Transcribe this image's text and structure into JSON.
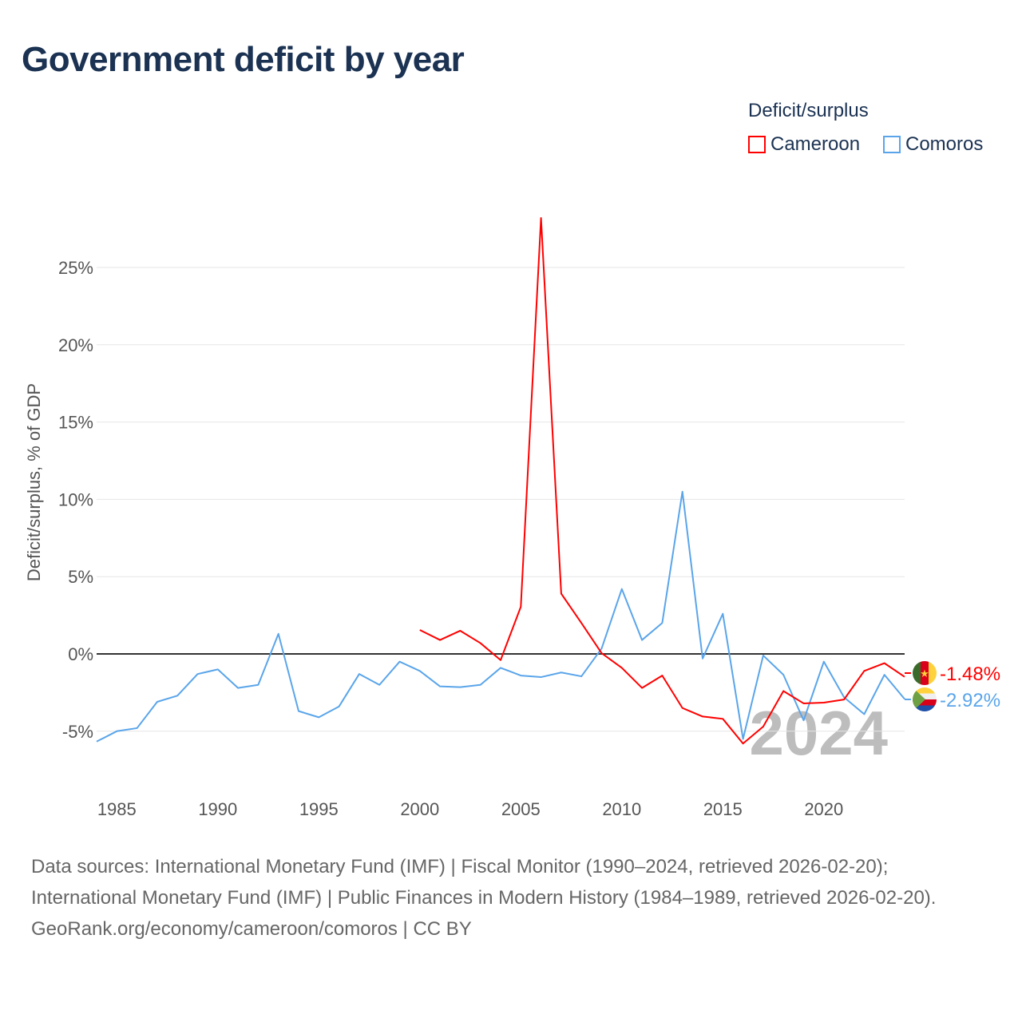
{
  "title": "Government deficit by year",
  "legend": {
    "title": "Deficit/surplus",
    "items": [
      {
        "name": "Cameroon",
        "color": "#ff0000"
      },
      {
        "name": "Comoros",
        "color": "#5aa5ea"
      }
    ]
  },
  "watermark_year": "2024",
  "end_labels": {
    "cameroon": "-1.48%",
    "comoros": "-2.92%"
  },
  "source": {
    "line1": "Data sources: International Monetary Fund (IMF) | Fiscal Monitor (1990–2024, retrieved 2026-02-20); International Monetary Fund (IMF) | Public Finances in Modern History (1984–1989, retrieved 2026-02-20).",
    "line2": "GeoRank.org/economy/cameroon/comoros | CC BY"
  },
  "chart_data": {
    "type": "line",
    "title": "Government deficit by year",
    "xlabel": "",
    "ylabel": "Deficit/surplus, % of GDP",
    "xlim": [
      1984,
      2024
    ],
    "ylim": [
      -7.5,
      29
    ],
    "xticks": [
      1985,
      1990,
      1995,
      2000,
      2005,
      2010,
      2015,
      2020
    ],
    "yticks": [
      -5,
      0,
      5,
      10,
      15,
      20,
      25
    ],
    "ytick_labels": [
      "-5%",
      "0%",
      "5%",
      "10%",
      "15%",
      "20%",
      "25%"
    ],
    "legend_position": "top-right",
    "series": [
      {
        "name": "Cameroon",
        "color": "#ff0000",
        "x": [
          2000,
          2001,
          2002,
          2003,
          2004,
          2005,
          2006,
          2007,
          2008,
          2009,
          2010,
          2011,
          2012,
          2013,
          2014,
          2015,
          2016,
          2017,
          2018,
          2019,
          2020,
          2021,
          2022,
          2023,
          2024
        ],
        "values": [
          1.55,
          0.9,
          1.5,
          0.7,
          -0.4,
          3.05,
          28.2,
          3.9,
          2.0,
          0.05,
          -0.9,
          -2.2,
          -1.4,
          -3.5,
          -4.05,
          -4.2,
          -5.8,
          -4.7,
          -2.4,
          -3.2,
          -3.15,
          -2.95,
          -1.1,
          -0.6,
          -1.48
        ]
      },
      {
        "name": "Comoros",
        "color": "#5aa5ea",
        "x": [
          1984,
          1985,
          1986,
          1987,
          1988,
          1989,
          1990,
          1991,
          1992,
          1993,
          1994,
          1995,
          1996,
          1997,
          1998,
          1999,
          2000,
          2001,
          2002,
          2003,
          2004,
          2005,
          2006,
          2007,
          2008,
          2009,
          2010,
          2011,
          2012,
          2013,
          2014,
          2015,
          2016,
          2017,
          2018,
          2019,
          2020,
          2021,
          2022,
          2023,
          2024
        ],
        "values": [
          -5.67,
          -5.0,
          -4.8,
          -3.1,
          -2.7,
          -1.3,
          -1.0,
          -2.2,
          -2.0,
          1.3,
          -3.7,
          -4.1,
          -3.4,
          -1.3,
          -2.0,
          -0.5,
          -1.1,
          -2.1,
          -2.15,
          -2.0,
          -0.9,
          -1.4,
          -1.5,
          -1.2,
          -1.45,
          0.35,
          4.2,
          0.9,
          2.0,
          10.5,
          -0.3,
          2.6,
          -5.5,
          -0.1,
          -1.35,
          -4.3,
          -0.5,
          -2.8,
          -3.9,
          -1.35,
          -2.92
        ]
      }
    ]
  }
}
